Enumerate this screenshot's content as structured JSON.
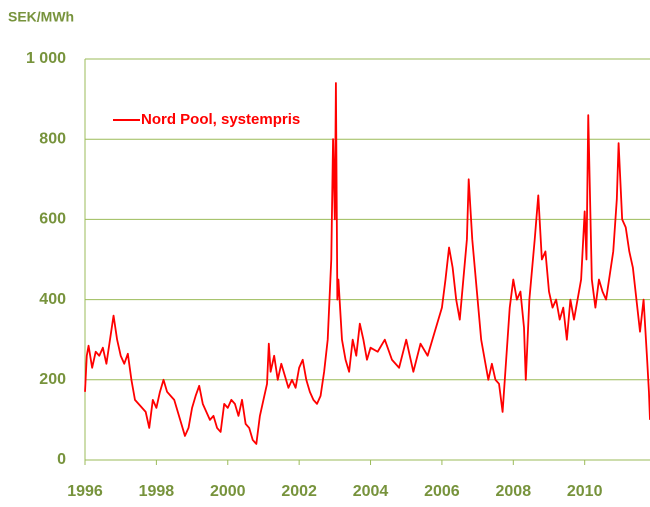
{
  "chart_data": {
    "type": "line",
    "ylabel": "SEK/MWh",
    "x": [
      1996.0,
      1996.05,
      1996.1,
      1996.2,
      1996.3,
      1996.4,
      1996.5,
      1996.6,
      1996.7,
      1996.8,
      1996.9,
      1997.0,
      1997.1,
      1997.2,
      1997.3,
      1997.4,
      1997.5,
      1997.6,
      1997.7,
      1997.8,
      1997.9,
      1998.0,
      1998.1,
      1998.2,
      1998.3,
      1998.4,
      1998.5,
      1998.6,
      1998.7,
      1998.8,
      1998.9,
      1999.0,
      1999.1,
      1999.2,
      1999.3,
      1999.4,
      1999.5,
      1999.6,
      1999.7,
      1999.8,
      1999.9,
      2000.0,
      2000.1,
      2000.2,
      2000.3,
      2000.4,
      2000.5,
      2000.6,
      2000.7,
      2000.8,
      2000.9,
      2001.0,
      2001.1,
      2001.15,
      2001.2,
      2001.3,
      2001.4,
      2001.5,
      2001.6,
      2001.7,
      2001.8,
      2001.9,
      2002.0,
      2002.1,
      2002.2,
      2002.3,
      2002.4,
      2002.5,
      2002.6,
      2002.7,
      2002.8,
      2002.9,
      2002.95,
      2003.0,
      2003.03,
      2003.07,
      2003.1,
      2003.2,
      2003.3,
      2003.4,
      2003.5,
      2003.6,
      2003.7,
      2003.8,
      2003.9,
      2004.0,
      2004.2,
      2004.4,
      2004.6,
      2004.8,
      2005.0,
      2005.2,
      2005.4,
      2005.6,
      2005.8,
      2006.0,
      2006.1,
      2006.2,
      2006.3,
      2006.4,
      2006.5,
      2006.6,
      2006.7,
      2006.75,
      2006.85,
      2007.0,
      2007.1,
      2007.2,
      2007.3,
      2007.4,
      2007.5,
      2007.6,
      2007.7,
      2007.8,
      2007.9,
      2008.0,
      2008.1,
      2008.2,
      2008.3,
      2008.35,
      2008.45,
      2008.6,
      2008.7,
      2008.8,
      2008.9,
      2009.0,
      2009.1,
      2009.2,
      2009.3,
      2009.4,
      2009.5,
      2009.6,
      2009.7,
      2009.8,
      2009.9,
      2010.0,
      2010.05,
      2010.1,
      2010.2,
      2010.3,
      2010.4,
      2010.5,
      2010.6,
      2010.7,
      2010.8,
      2010.9,
      2010.95,
      2011.05,
      2011.15,
      2011.25,
      2011.35,
      2011.45,
      2011.55,
      2011.65,
      2011.75,
      2011.8,
      2011.83
    ],
    "series": [
      {
        "name": "Nord Pool, systempris",
        "color": "#ff0000",
        "values": [
          170,
          260,
          285,
          230,
          270,
          260,
          280,
          240,
          300,
          360,
          300,
          260,
          240,
          265,
          200,
          150,
          140,
          130,
          120,
          80,
          150,
          130,
          170,
          200,
          170,
          160,
          150,
          120,
          90,
          60,
          80,
          130,
          160,
          185,
          140,
          120,
          100,
          110,
          80,
          70,
          140,
          130,
          150,
          140,
          110,
          150,
          90,
          80,
          50,
          40,
          110,
          150,
          190,
          290,
          220,
          260,
          200,
          240,
          210,
          180,
          200,
          180,
          230,
          250,
          200,
          170,
          150,
          140,
          160,
          220,
          300,
          500,
          800,
          600,
          940,
          400,
          450,
          300,
          250,
          220,
          300,
          260,
          340,
          300,
          250,
          280,
          270,
          300,
          250,
          230,
          300,
          220,
          290,
          260,
          320,
          380,
          450,
          530,
          480,
          400,
          350,
          450,
          550,
          700,
          550,
          400,
          300,
          250,
          200,
          240,
          200,
          190,
          120,
          250,
          380,
          450,
          400,
          420,
          330,
          200,
          400,
          550,
          660,
          500,
          520,
          420,
          380,
          400,
          350,
          380,
          300,
          400,
          350,
          400,
          450,
          620,
          500,
          860,
          450,
          380,
          450,
          420,
          400,
          460,
          520,
          650,
          790,
          600,
          580,
          520,
          480,
          400,
          320,
          400,
          250,
          170,
          100
        ]
      }
    ],
    "xlim": [
      1996,
      2011.83
    ],
    "xticks": [
      1996,
      1998,
      2000,
      2002,
      2004,
      2006,
      2008,
      2010
    ],
    "ylim": [
      0,
      1000
    ],
    "yticks": [
      0,
      200,
      400,
      600,
      800,
      {
        "value": 1000,
        "label": "1 000"
      }
    ],
    "grid": true,
    "legend": "upper left"
  }
}
